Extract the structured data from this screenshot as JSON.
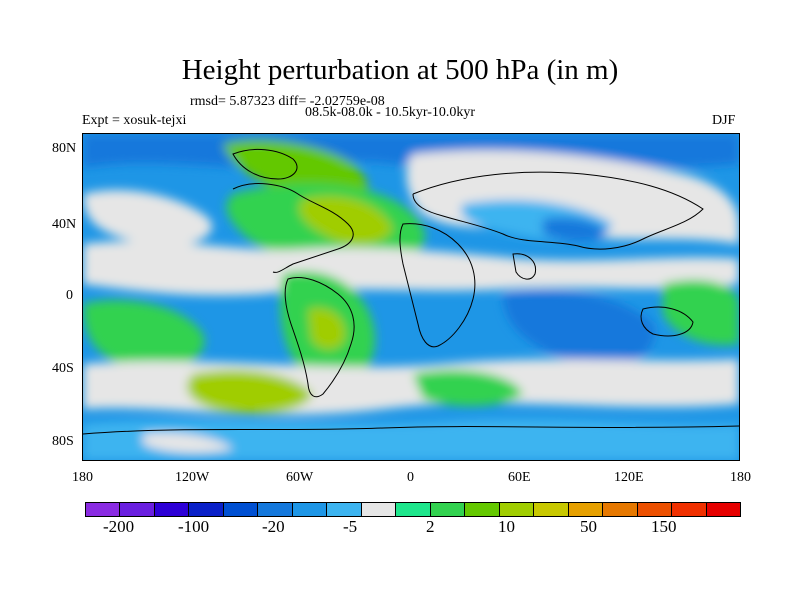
{
  "header": {
    "title": "Height perturbation at 500 hPa (in m)",
    "stats": "rmsd= 5.87323 diff= -2.02759e-08",
    "experiment": "Expt = xosuk-tejxi",
    "period": "08.5k-08.0k - 10.5kyr-10.0kyr",
    "season": "DJF"
  },
  "chart_data": {
    "type": "heatmap",
    "title": "Height perturbation at 500 hPa (in m)",
    "variable": "500 hPa geopotential height perturbation",
    "units": "m",
    "projection": "cylindrical equidistant",
    "x_axis": {
      "range": [
        -180,
        180
      ],
      "tick_labels": [
        "180",
        "120W",
        "60W",
        "0",
        "60E",
        "120E",
        "180"
      ]
    },
    "y_axis": {
      "range": [
        -90,
        90
      ],
      "tick_labels": [
        "80N",
        "40N",
        "0",
        "40S",
        "80S"
      ]
    },
    "colorbar": {
      "tick_labels": [
        "-200",
        "-100",
        "-20",
        "-5",
        "2",
        "10",
        "50",
        "150"
      ],
      "colors": [
        "#8a2be2",
        "#6a1fe0",
        "#2d00d6",
        "#0a20c8",
        "#0050d2",
        "#1478dc",
        "#1e96e6",
        "#3cb4f0",
        "#e6e6e6",
        "#1ee68c",
        "#32d250",
        "#64c800",
        "#a0cd00",
        "#c8c800",
        "#e6a000",
        "#e67800",
        "#ec5000",
        "#f03000",
        "#e60000"
      ]
    }
  }
}
